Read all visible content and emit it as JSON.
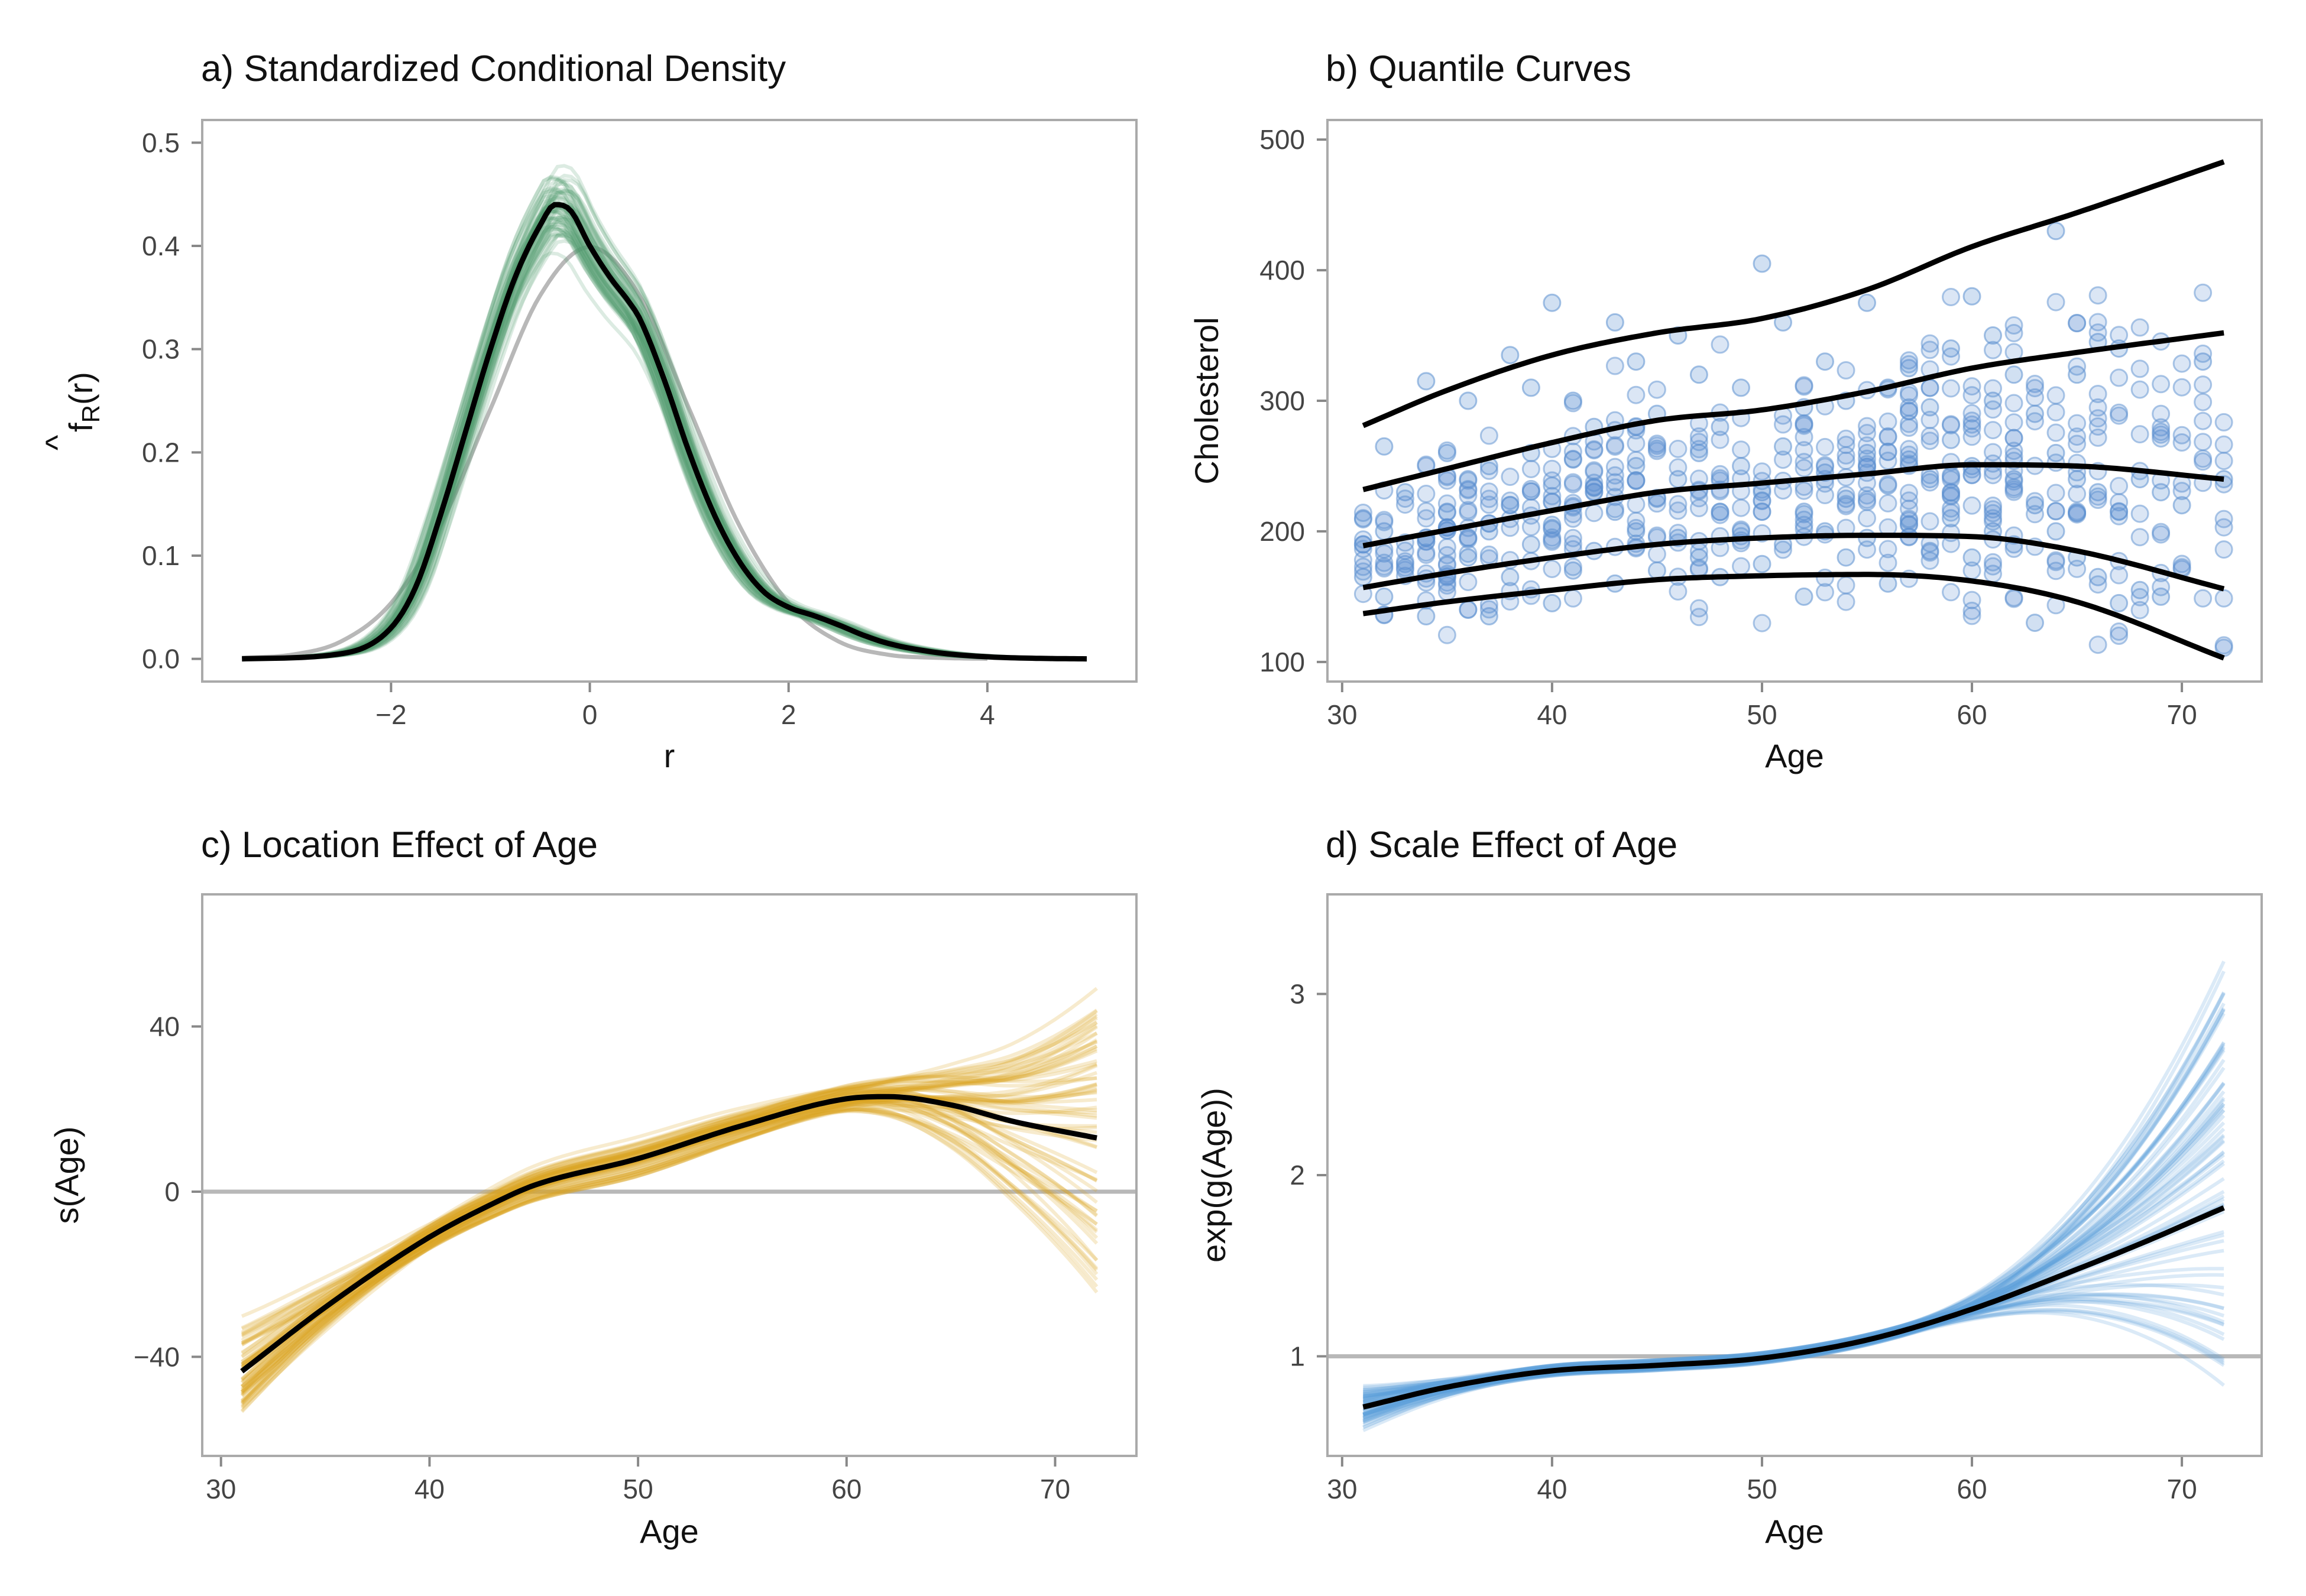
{
  "chart_data": [
    {
      "id": "a",
      "type": "line",
      "title": "a) Standardized Conditional Density",
      "xlabel": "r",
      "ylabel_base": "f",
      "ylabel_hat": "^",
      "ylabel_sub": "R",
      "ylabel_arg": "(r)",
      "xlim": [
        -3.9,
        5.5
      ],
      "ylim": [
        -0.022,
        0.522
      ],
      "xticks": [
        -2,
        0,
        2,
        4
      ],
      "xtick_labels": [
        "−2",
        "0",
        "2",
        "4"
      ],
      "yticks": [
        0.0,
        0.1,
        0.2,
        0.3,
        0.4,
        0.5
      ],
      "ytick_labels": [
        "0.0",
        "0.1",
        "0.2",
        "0.3",
        "0.4",
        "0.5"
      ],
      "colors": {
        "samples": "#4e9a6f",
        "estimate": "#000000",
        "reference": "#b8b8b8"
      },
      "reference_curve": {
        "x": [
          -3.5,
          -3.0,
          -2.5,
          -2.0,
          -1.5,
          -1.0,
          -0.5,
          0.0,
          0.5,
          1.0,
          1.5,
          2.0,
          2.5,
          3.0,
          3.5,
          4.0
        ],
        "y": [
          0.001,
          0.004,
          0.017,
          0.054,
          0.13,
          0.242,
          0.352,
          0.399,
          0.352,
          0.242,
          0.13,
          0.054,
          0.017,
          0.004,
          0.001,
          0.0
        ]
      },
      "series": [
        {
          "x": [
            -3.5,
            -2.5,
            -2.0,
            -1.75,
            -1.5,
            -1.25,
            -1.0,
            -0.75,
            -0.5,
            -0.35,
            -0.2,
            0.0,
            0.2,
            0.4,
            0.5,
            0.75,
            1.0,
            1.25,
            1.5,
            1.75,
            2.0,
            2.25,
            2.5,
            2.75,
            3.0,
            3.5,
            4.0,
            4.5,
            5.0
          ],
          "y": [
            0.0,
            0.005,
            0.03,
            0.07,
            0.14,
            0.22,
            0.3,
            0.37,
            0.42,
            0.44,
            0.435,
            0.4,
            0.37,
            0.345,
            0.33,
            0.27,
            0.2,
            0.14,
            0.095,
            0.065,
            0.05,
            0.042,
            0.033,
            0.023,
            0.015,
            0.006,
            0.002,
            0.0005,
            0.0
          ]
        }
      ]
    },
    {
      "id": "b",
      "type": "scatter",
      "title": "b) Quantile Curves",
      "xlabel": "Age",
      "ylabel": "Cholesterol",
      "xlim": [
        29.3,
        73.8
      ],
      "ylim": [
        85,
        515
      ],
      "xticks": [
        30,
        40,
        50,
        60,
        70
      ],
      "xtick_labels": [
        "30",
        "40",
        "50",
        "60",
        "70"
      ],
      "yticks": [
        100,
        200,
        300,
        400,
        500
      ],
      "ytick_labels": [
        "100",
        "200",
        "300",
        "400",
        "500"
      ],
      "colors": {
        "points": "#5b8fd0",
        "curves": "#000000"
      },
      "series": [
        {
          "x": [
            31,
            35,
            40,
            45,
            50,
            55,
            60,
            65,
            72
          ],
          "y": [
            137,
            146,
            155,
            163,
            166,
            167,
            162,
            146,
            103
          ]
        },
        {
          "x": [
            31,
            35,
            40,
            45,
            50,
            55,
            60,
            65,
            72
          ],
          "y": [
            157,
            168,
            180,
            190,
            195,
            197,
            196,
            185,
            156
          ]
        },
        {
          "x": [
            31,
            35,
            40,
            45,
            50,
            55,
            60,
            65,
            72
          ],
          "y": [
            189,
            201,
            216,
            230,
            237,
            244,
            251,
            250,
            240
          ]
        },
        {
          "x": [
            31,
            35,
            40,
            45,
            50,
            55,
            60,
            65,
            72
          ],
          "y": [
            232,
            248,
            268,
            285,
            293,
            307,
            325,
            337,
            352
          ]
        },
        {
          "x": [
            31,
            35,
            40,
            45,
            50,
            55,
            60,
            65,
            72
          ],
          "y": [
            281,
            308,
            335,
            352,
            363,
            385,
            418,
            444,
            483
          ]
        }
      ],
      "points": [
        [
          31,
          165
        ],
        [
          31,
          190
        ],
        [
          31,
          210
        ],
        [
          32,
          150
        ],
        [
          32,
          200
        ],
        [
          32,
          265
        ],
        [
          33,
          175
        ],
        [
          33,
          230
        ],
        [
          34,
          135
        ],
        [
          34,
          195
        ],
        [
          34,
          315
        ],
        [
          35,
          165
        ],
        [
          35,
          215
        ],
        [
          35,
          260
        ],
        [
          36,
          180
        ],
        [
          36,
          240
        ],
        [
          36,
          300
        ],
        [
          37,
          135
        ],
        [
          37,
          200
        ],
        [
          37,
          250
        ],
        [
          38,
          165
        ],
        [
          38,
          220
        ],
        [
          38,
          335
        ],
        [
          39,
          190
        ],
        [
          39,
          260
        ],
        [
          39,
          310
        ],
        [
          40,
          145
        ],
        [
          40,
          205
        ],
        [
          40,
          235
        ],
        [
          40,
          375
        ],
        [
          41,
          170
        ],
        [
          41,
          255
        ],
        [
          41,
          300
        ],
        [
          42,
          185
        ],
        [
          42,
          230
        ],
        [
          42,
          280
        ],
        [
          43,
          160
        ],
        [
          43,
          215
        ],
        [
          43,
          360
        ],
        [
          44,
          200
        ],
        [
          44,
          250
        ],
        [
          44,
          330
        ],
        [
          45,
          170
        ],
        [
          45,
          225
        ],
        [
          45,
          290
        ],
        [
          46,
          195
        ],
        [
          46,
          240
        ],
        [
          46,
          350
        ],
        [
          47,
          180
        ],
        [
          47,
          260
        ],
        [
          47,
          320
        ],
        [
          48,
          165
        ],
        [
          48,
          215
        ],
        [
          48,
          280
        ],
        [
          49,
          200
        ],
        [
          49,
          250
        ],
        [
          49,
          310
        ],
        [
          50,
          175
        ],
        [
          50,
          230
        ],
        [
          50,
          405
        ],
        [
          51,
          190
        ],
        [
          51,
          265
        ],
        [
          51,
          360
        ],
        [
          52,
          150
        ],
        [
          52,
          215
        ],
        [
          52,
          295
        ],
        [
          53,
          200
        ],
        [
          53,
          245
        ],
        [
          53,
          330
        ],
        [
          54,
          180
        ],
        [
          54,
          225
        ],
        [
          54,
          300
        ],
        [
          55,
          195
        ],
        [
          55,
          260
        ],
        [
          55,
          375
        ],
        [
          56,
          160
        ],
        [
          56,
          235
        ],
        [
          56,
          310
        ],
        [
          57,
          205
        ],
        [
          57,
          255
        ],
        [
          57,
          325
        ],
        [
          58,
          185
        ],
        [
          58,
          240
        ],
        [
          58,
          295
        ],
        [
          59,
          210
        ],
        [
          59,
          270
        ],
        [
          59,
          340
        ],
        [
          60,
          180
        ],
        [
          60,
          250
        ],
        [
          60,
          380
        ],
        [
          61,
          200
        ],
        [
          61,
          300
        ],
        [
          61,
          350
        ],
        [
          62,
          190
        ],
        [
          62,
          240
        ],
        [
          62,
          320
        ],
        [
          63,
          130
        ],
        [
          63,
          220
        ],
        [
          63,
          290
        ],
        [
          64,
          200
        ],
        [
          64,
          260
        ],
        [
          64,
          430
        ],
        [
          65,
          180
        ],
        [
          65,
          240
        ],
        [
          65,
          320
        ],
        [
          66,
          165
        ],
        [
          66,
          230
        ],
        [
          66,
          345
        ],
        [
          67,
          145
        ],
        [
          67,
          215
        ],
        [
          67,
          340
        ],
        [
          68,
          155
        ],
        [
          68,
          240
        ],
        [
          69,
          150
        ],
        [
          69,
          230
        ],
        [
          70,
          220
        ],
        [
          71,
          330
        ],
        [
          72,
          240
        ]
      ]
    },
    {
      "id": "c",
      "type": "line",
      "title": "c) Location Effect of Age",
      "xlabel": "Age",
      "ylabel": "s(Age)",
      "xlim": [
        29.1,
        73.9
      ],
      "ylim": [
        -64,
        72
      ],
      "xticks": [
        30,
        40,
        50,
        60,
        70
      ],
      "xtick_labels": [
        "30",
        "40",
        "50",
        "60",
        "70"
      ],
      "yticks": [
        -40,
        0,
        40
      ],
      "ytick_labels": [
        "−40",
        "0",
        "40"
      ],
      "reference_y": 0,
      "colors": {
        "samples": "#d9a520",
        "estimate": "#000000",
        "reference": "#b8b8b8"
      },
      "series": [
        {
          "x": [
            31,
            35,
            40,
            43,
            45,
            50,
            55,
            60,
            62,
            65,
            68,
            72
          ],
          "y": [
            -43.5,
            -28,
            -11,
            -3,
            1.5,
            8,
            16,
            22.5,
            23,
            21,
            17,
            13
          ]
        }
      ]
    },
    {
      "id": "d",
      "type": "line",
      "title": "d) Scale Effect of Age",
      "xlabel": "Age",
      "ylabel": "exp(g(Age))",
      "xlim": [
        29.3,
        73.8
      ],
      "ylim": [
        0.45,
        3.55
      ],
      "xticks": [
        30,
        40,
        50,
        60,
        70
      ],
      "xtick_labels": [
        "30",
        "40",
        "50",
        "60",
        "70"
      ],
      "yticks": [
        1,
        2,
        3
      ],
      "ytick_labels": [
        "1",
        "2",
        "3"
      ],
      "reference_y": 1,
      "colors": {
        "samples": "#5ca0dc",
        "estimate": "#000000",
        "reference": "#b8b8b8"
      },
      "series": [
        {
          "x": [
            31,
            35,
            40,
            45,
            50,
            55,
            60,
            65,
            68,
            72
          ],
          "y": [
            0.72,
            0.83,
            0.92,
            0.95,
            0.99,
            1.09,
            1.26,
            1.48,
            1.62,
            1.82
          ]
        }
      ]
    }
  ]
}
